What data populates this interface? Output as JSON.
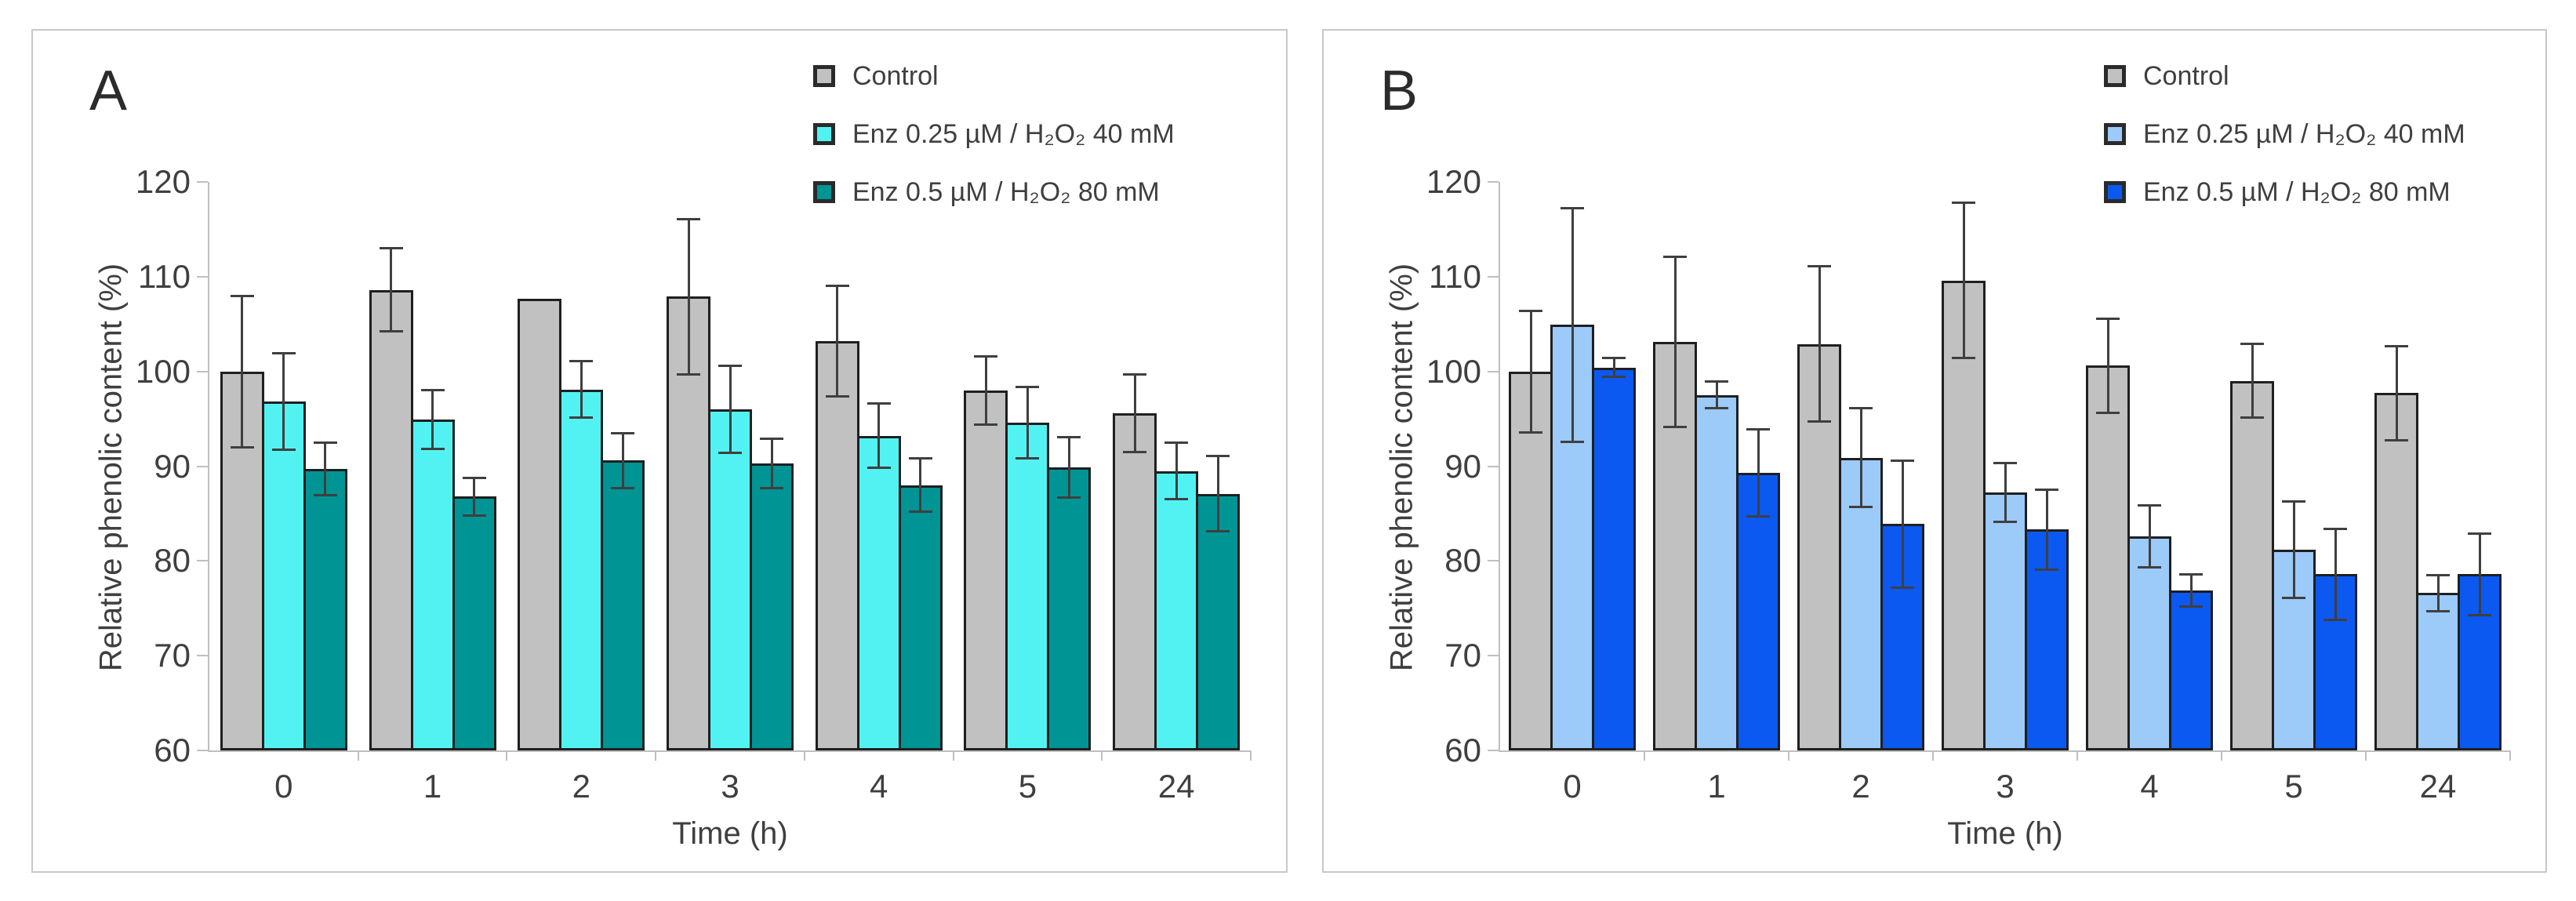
{
  "figure": {
    "background": "#FFFFFF",
    "panel_border_color": "#C8C8C8",
    "axis_color": "#BFBFBF",
    "text_color": "#3F3F3F",
    "bar_outline_color": "#1F1F1F",
    "error_bar_color": "#3F3F3F"
  },
  "chart_data": [
    {
      "type": "bar",
      "panel_label": "A",
      "title": "",
      "xlabel": "Time (h)",
      "ylabel": "Relative phenolic content (%)",
      "ylim": [
        60,
        120
      ],
      "yticks": [
        60,
        70,
        80,
        90,
        100,
        110,
        120
      ],
      "categories": [
        "0",
        "1",
        "2",
        "3",
        "4",
        "5",
        "24"
      ],
      "grid": false,
      "legend_position": "top-right-inside",
      "error_bars": true,
      "series": [
        {
          "name": "Control",
          "color": "#C1C1C1",
          "values": [
            100.0,
            108.6,
            107.7,
            107.9,
            103.2,
            98.0,
            95.6
          ],
          "errors": [
            8.0,
            4.4,
            0,
            8.2,
            5.8,
            3.6,
            4.1
          ]
        },
        {
          "name": "Enz 0.25 µM / H₂O₂ 40 mM",
          "color": "#53F2F2",
          "values": [
            96.8,
            94.9,
            98.1,
            96.0,
            93.2,
            94.6,
            89.5
          ],
          "errors": [
            5.1,
            3.1,
            3.0,
            4.6,
            3.4,
            3.8,
            3.0
          ]
        },
        {
          "name": "Enz 0.5 µM / H₂O₂ 80 mM",
          "color": "#009494",
          "values": [
            89.7,
            86.8,
            90.6,
            90.3,
            88.0,
            89.9,
            87.1
          ],
          "errors": [
            2.8,
            2.0,
            2.9,
            2.6,
            2.8,
            3.2,
            4.0
          ]
        }
      ]
    },
    {
      "type": "bar",
      "panel_label": "B",
      "title": "",
      "xlabel": "Time (h)",
      "ylabel": "Relative phenolic content (%)",
      "ylim": [
        60,
        120
      ],
      "yticks": [
        60,
        70,
        80,
        90,
        100,
        110,
        120
      ],
      "categories": [
        "0",
        "1",
        "2",
        "3",
        "4",
        "5",
        "24"
      ],
      "grid": false,
      "legend_position": "top-right-inside",
      "error_bars": true,
      "series": [
        {
          "name": "Control",
          "color": "#C1C1C1",
          "values": [
            100.0,
            103.1,
            102.9,
            109.6,
            100.6,
            99.0,
            97.7
          ],
          "errors": [
            6.4,
            9.0,
            8.2,
            8.2,
            5.0,
            3.9,
            5.0
          ]
        },
        {
          "name": "Enz 0.25 µM / H₂O₂ 40 mM",
          "color": "#9CCAF9",
          "values": [
            104.9,
            97.5,
            90.9,
            87.2,
            82.6,
            81.2,
            76.6
          ],
          "errors": [
            12.3,
            1.4,
            5.2,
            3.1,
            3.3,
            5.1,
            1.9
          ]
        },
        {
          "name": "Enz 0.5 µM / H₂O₂ 80 mM",
          "color": "#0B59F0",
          "values": [
            100.4,
            89.3,
            83.9,
            83.3,
            76.9,
            78.6,
            78.6
          ],
          "errors": [
            1.0,
            4.6,
            6.7,
            4.2,
            1.7,
            4.8,
            4.3
          ]
        }
      ]
    }
  ]
}
